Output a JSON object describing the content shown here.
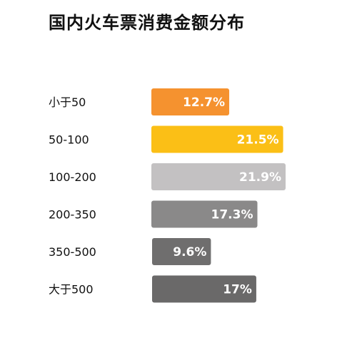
{
  "chart_data": {
    "type": "bar",
    "orientation": "horizontal",
    "title": "国内火车票消费金额分布",
    "categories": [
      "小于50",
      "50-100",
      "100-200",
      "200-350",
      "350-500",
      "大于500"
    ],
    "values": [
      12.7,
      21.5,
      21.9,
      17.3,
      9.6,
      17
    ],
    "value_labels": [
      "12.7%",
      "21.5%",
      "21.9%",
      "17.3%",
      "9.6%",
      "17%"
    ],
    "unit": "%",
    "colors": [
      "#f5922f",
      "#fbbf16",
      "#c3c1c2",
      "#8a8989",
      "#6f6e6e",
      "#6a6969"
    ],
    "xlabel": "",
    "ylabel": "",
    "grid": false,
    "legend": "none"
  }
}
